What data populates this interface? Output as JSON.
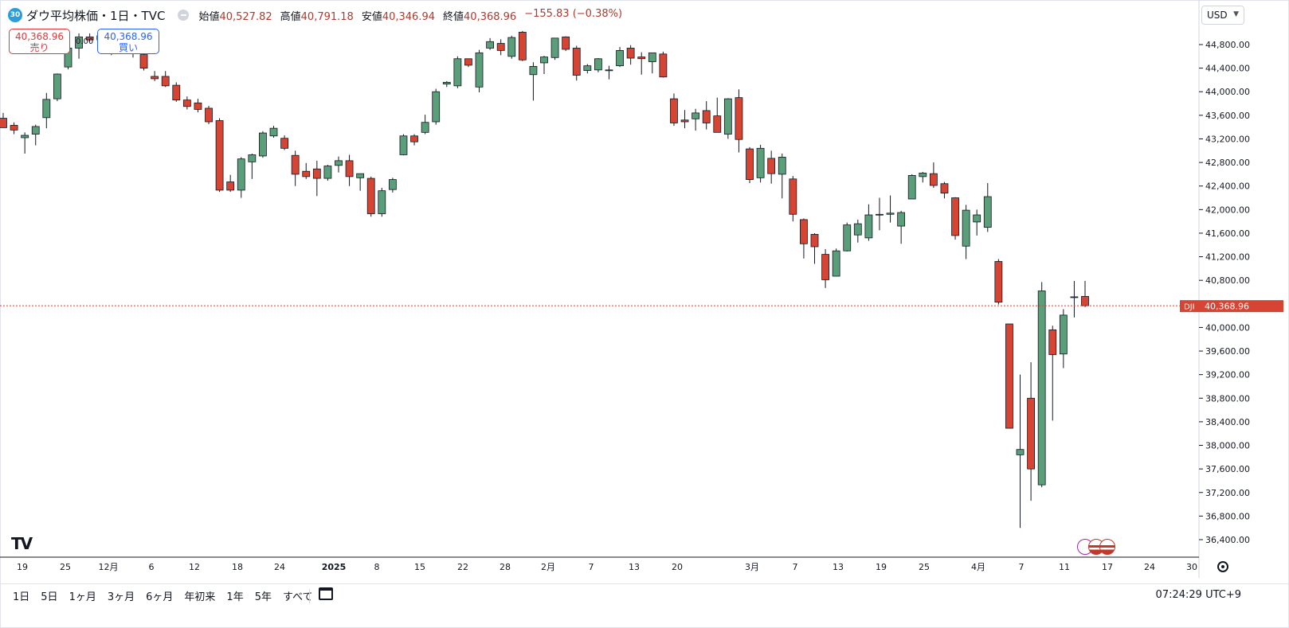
{
  "header": {
    "badge": "30",
    "title": "ダウ平均株価・1日・TVC",
    "open_label": "始値",
    "open": "40,527.82",
    "high_label": "高値",
    "high": "40,791.18",
    "low_label": "安値",
    "low": "40,346.94",
    "close_label": "終値",
    "close": "40,368.96",
    "change": "−155.83 (−0.38%)"
  },
  "trade": {
    "sell_price": "40,368.96",
    "sell_label": "売り",
    "buy_price": "40,368.96",
    "buy_label": "買い",
    "spread": "0.00"
  },
  "currency": "USD",
  "price_tag": {
    "symbol": "DJI",
    "value": "40,368.96"
  },
  "ranges": [
    "1日",
    "5日",
    "1ヶ月",
    "3ヶ月",
    "6ヶ月",
    "年初来",
    "1年",
    "5年",
    "すべて"
  ],
  "clock": "07:24:29 UTC+9",
  "colors": {
    "up": "#5a9e7a",
    "down": "#d64533",
    "price_line": "#d64533"
  },
  "chart_data": {
    "type": "candlestick",
    "y_ticks": [
      "44,800.00",
      "44,400.00",
      "44,000.00",
      "43,600.00",
      "43,200.00",
      "42,800.00",
      "42,400.00",
      "42,000.00",
      "41,600.00",
      "41,200.00",
      "40,800.00",
      "40,000.00",
      "39,600.00",
      "39,200.00",
      "38,800.00",
      "38,400.00",
      "38,000.00",
      "37,600.00",
      "37,200.00",
      "36,800.00",
      "36,400.00"
    ],
    "x_ticks": [
      "19",
      "25",
      "12月",
      "6",
      "12",
      "18",
      "24",
      "2025",
      "8",
      "15",
      "22",
      "28",
      "2月",
      "7",
      "13",
      "20",
      "3月",
      "7",
      "13",
      "19",
      "25",
      "4月",
      "7",
      "11",
      "17",
      "24",
      "30"
    ],
    "ylim": [
      36200,
      45300
    ],
    "candles": [
      {
        "o": 43550,
        "h": 43640,
        "l": 43420,
        "c": 43390
      },
      {
        "o": 43430,
        "h": 43480,
        "l": 43280,
        "c": 43350
      },
      {
        "o": 43220,
        "h": 43310,
        "l": 42950,
        "c": 43260
      },
      {
        "o": 43280,
        "h": 43440,
        "l": 43090,
        "c": 43410
      },
      {
        "o": 43560,
        "h": 43980,
        "l": 43380,
        "c": 43870
      },
      {
        "o": 43880,
        "h": 44310,
        "l": 43840,
        "c": 44300
      },
      {
        "o": 44420,
        "h": 44760,
        "l": 44380,
        "c": 44740
      },
      {
        "o": 44740,
        "h": 44990,
        "l": 44560,
        "c": 44930
      },
      {
        "o": 44930,
        "h": 44990,
        "l": 44850,
        "c": 44880
      },
      {
        "o": 44880,
        "h": 45010,
        "l": 44800,
        "c": 44950
      },
      {
        "o": 44950,
        "h": 45000,
        "l": 44620,
        "c": 44760
      },
      {
        "o": 44760,
        "h": 44880,
        "l": 44640,
        "c": 44660
      },
      {
        "o": 44660,
        "h": 44760,
        "l": 44580,
        "c": 44650
      },
      {
        "o": 44630,
        "h": 44670,
        "l": 44360,
        "c": 44400
      },
      {
        "o": 44260,
        "h": 44350,
        "l": 44180,
        "c": 44220
      },
      {
        "o": 44260,
        "h": 44350,
        "l": 44080,
        "c": 44100
      },
      {
        "o": 44110,
        "h": 44160,
        "l": 43830,
        "c": 43860
      },
      {
        "o": 43860,
        "h": 43920,
        "l": 43700,
        "c": 43750
      },
      {
        "o": 43810,
        "h": 43880,
        "l": 43650,
        "c": 43700
      },
      {
        "o": 43720,
        "h": 43760,
        "l": 43450,
        "c": 43490
      },
      {
        "o": 43510,
        "h": 43550,
        "l": 42300,
        "c": 42330
      },
      {
        "o": 42470,
        "h": 42590,
        "l": 42300,
        "c": 42330
      },
      {
        "o": 42330,
        "h": 42890,
        "l": 42200,
        "c": 42860
      },
      {
        "o": 42810,
        "h": 42950,
        "l": 42520,
        "c": 42930
      },
      {
        "o": 42910,
        "h": 43330,
        "l": 42880,
        "c": 43300
      },
      {
        "o": 43250,
        "h": 43420,
        "l": 43220,
        "c": 43380
      },
      {
        "o": 43210,
        "h": 43260,
        "l": 43010,
        "c": 43040
      },
      {
        "o": 42920,
        "h": 43000,
        "l": 42400,
        "c": 42600
      },
      {
        "o": 42650,
        "h": 42790,
        "l": 42520,
        "c": 42560
      },
      {
        "o": 42690,
        "h": 42830,
        "l": 42230,
        "c": 42530
      },
      {
        "o": 42530,
        "h": 42760,
        "l": 42490,
        "c": 42740
      },
      {
        "o": 42750,
        "h": 42900,
        "l": 42630,
        "c": 42830
      },
      {
        "o": 42830,
        "h": 42930,
        "l": 42400,
        "c": 42560
      },
      {
        "o": 42540,
        "h": 42610,
        "l": 42320,
        "c": 42610
      },
      {
        "o": 42530,
        "h": 42560,
        "l": 41880,
        "c": 41930
      },
      {
        "o": 41930,
        "h": 42370,
        "l": 41880,
        "c": 42320
      },
      {
        "o": 42340,
        "h": 42540,
        "l": 42290,
        "c": 42510
      },
      {
        "o": 42930,
        "h": 43280,
        "l": 42920,
        "c": 43250
      },
      {
        "o": 43250,
        "h": 43280,
        "l": 43090,
        "c": 43150
      },
      {
        "o": 43310,
        "h": 43610,
        "l": 43280,
        "c": 43480
      },
      {
        "o": 43490,
        "h": 44050,
        "l": 43440,
        "c": 44000
      },
      {
        "o": 44130,
        "h": 44180,
        "l": 44080,
        "c": 44160
      },
      {
        "o": 44100,
        "h": 44600,
        "l": 44060,
        "c": 44560
      },
      {
        "o": 44560,
        "h": 44560,
        "l": 44420,
        "c": 44450
      },
      {
        "o": 44080,
        "h": 44710,
        "l": 43990,
        "c": 44660
      },
      {
        "o": 44740,
        "h": 44910,
        "l": 44710,
        "c": 44850
      },
      {
        "o": 44820,
        "h": 44890,
        "l": 44620,
        "c": 44700
      },
      {
        "o": 44600,
        "h": 44950,
        "l": 44560,
        "c": 44920
      },
      {
        "o": 45010,
        "h": 45030,
        "l": 44520,
        "c": 44540
      },
      {
        "o": 44290,
        "h": 44500,
        "l": 43850,
        "c": 44430
      },
      {
        "o": 44490,
        "h": 44610,
        "l": 44300,
        "c": 44590
      },
      {
        "o": 44580,
        "h": 44910,
        "l": 44540,
        "c": 44910
      },
      {
        "o": 44930,
        "h": 44940,
        "l": 44690,
        "c": 44720
      },
      {
        "o": 44740,
        "h": 44780,
        "l": 44190,
        "c": 44280
      },
      {
        "o": 44360,
        "h": 44470,
        "l": 44310,
        "c": 44440
      },
      {
        "o": 44370,
        "h": 44570,
        "l": 44330,
        "c": 44560
      },
      {
        "o": 44370,
        "h": 44440,
        "l": 44210,
        "c": 44370
      },
      {
        "o": 44440,
        "h": 44760,
        "l": 44420,
        "c": 44700
      },
      {
        "o": 44740,
        "h": 44790,
        "l": 44460,
        "c": 44570
      },
      {
        "o": 44590,
        "h": 44670,
        "l": 44290,
        "c": 44560
      },
      {
        "o": 44510,
        "h": 44650,
        "l": 44310,
        "c": 44660
      },
      {
        "o": 44640,
        "h": 44680,
        "l": 44240,
        "c": 44250
      },
      {
        "o": 43880,
        "h": 43970,
        "l": 43420,
        "c": 43470
      },
      {
        "o": 43520,
        "h": 43690,
        "l": 43380,
        "c": 43490
      },
      {
        "o": 43540,
        "h": 43710,
        "l": 43340,
        "c": 43640
      },
      {
        "o": 43680,
        "h": 43840,
        "l": 43360,
        "c": 43470
      },
      {
        "o": 43590,
        "h": 43900,
        "l": 43390,
        "c": 43310
      },
      {
        "o": 43280,
        "h": 43890,
        "l": 43200,
        "c": 43880
      },
      {
        "o": 43900,
        "h": 44040,
        "l": 42970,
        "c": 43190
      },
      {
        "o": 43030,
        "h": 43060,
        "l": 42450,
        "c": 42510
      },
      {
        "o": 42540,
        "h": 43100,
        "l": 42460,
        "c": 43040
      },
      {
        "o": 42870,
        "h": 43000,
        "l": 42440,
        "c": 42610
      },
      {
        "o": 42600,
        "h": 42950,
        "l": 42190,
        "c": 42890
      },
      {
        "o": 42520,
        "h": 42570,
        "l": 41800,
        "c": 41920
      },
      {
        "o": 41830,
        "h": 41850,
        "l": 41170,
        "c": 41420
      },
      {
        "o": 41580,
        "h": 41600,
        "l": 41080,
        "c": 41370
      },
      {
        "o": 41240,
        "h": 41330,
        "l": 40670,
        "c": 40810
      },
      {
        "o": 40870,
        "h": 41340,
        "l": 40940,
        "c": 41300
      },
      {
        "o": 41300,
        "h": 41780,
        "l": 41290,
        "c": 41740
      },
      {
        "o": 41570,
        "h": 41830,
        "l": 41440,
        "c": 41760
      },
      {
        "o": 41520,
        "h": 42090,
        "l": 41470,
        "c": 41910
      },
      {
        "o": 41910,
        "h": 42200,
        "l": 41650,
        "c": 41920
      },
      {
        "o": 41920,
        "h": 42240,
        "l": 41780,
        "c": 41940
      },
      {
        "o": 41720,
        "h": 41980,
        "l": 41420,
        "c": 41950
      },
      {
        "o": 42180,
        "h": 42600,
        "l": 42180,
        "c": 42580
      },
      {
        "o": 42560,
        "h": 42640,
        "l": 42460,
        "c": 42620
      },
      {
        "o": 42610,
        "h": 42800,
        "l": 42370,
        "c": 42410
      },
      {
        "o": 42440,
        "h": 42470,
        "l": 42190,
        "c": 42280
      },
      {
        "o": 42200,
        "h": 42210,
        "l": 41490,
        "c": 41560
      },
      {
        "o": 41380,
        "h": 42080,
        "l": 41160,
        "c": 41990
      },
      {
        "o": 41790,
        "h": 42000,
        "l": 41560,
        "c": 41910
      },
      {
        "o": 41700,
        "h": 42450,
        "l": 41620,
        "c": 42220
      },
      {
        "o": 41120,
        "h": 41160,
        "l": 40390,
        "c": 40430
      },
      {
        "o": 40060,
        "h": 40060,
        "l": 38330,
        "c": 38290
      },
      {
        "o": 37840,
        "h": 39200,
        "l": 36600,
        "c": 37930
      },
      {
        "o": 38800,
        "h": 39410,
        "l": 37060,
        "c": 37600
      },
      {
        "o": 37330,
        "h": 40770,
        "l": 37290,
        "c": 40620
      },
      {
        "o": 39960,
        "h": 40030,
        "l": 38420,
        "c": 39540
      },
      {
        "o": 39550,
        "h": 40310,
        "l": 39310,
        "c": 40210
      },
      {
        "o": 40520,
        "h": 40790,
        "l": 40170,
        "c": 40520
      },
      {
        "o": 40527.82,
        "h": 40791.18,
        "l": 40346.94,
        "c": 40368.96
      }
    ]
  }
}
